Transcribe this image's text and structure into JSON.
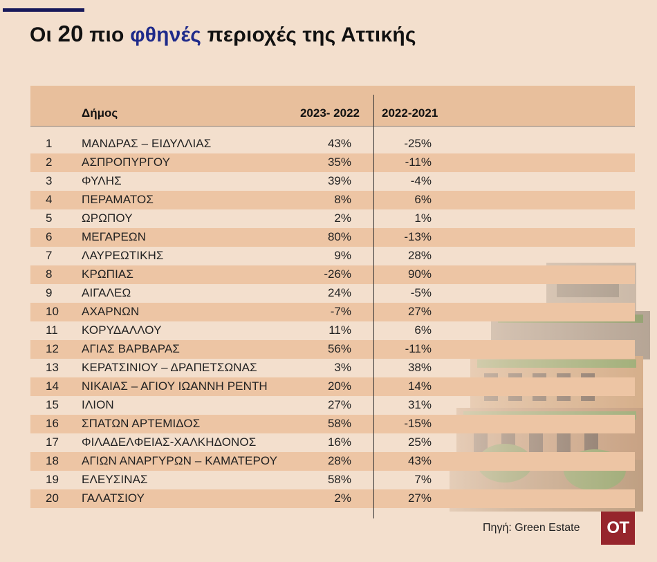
{
  "title": {
    "prefix": "Οι",
    "number": "20",
    "middle": "πιο",
    "accent": "φθηνές",
    "suffix": "περιοχές της Αττικής"
  },
  "colors": {
    "accent": "#1e2a8a",
    "topbar": "#17195a",
    "background": "#f3dfcd",
    "row_shade": "#edc5a4",
    "header": "#e8bf9c",
    "logo_bg": "#96252c"
  },
  "source": "Πηγή: Green Estate",
  "logo": "OT",
  "chart_data": {
    "type": "table",
    "columns": [
      "",
      "Δήμος",
      "2023- 2022",
      "2022-2021"
    ],
    "rows": [
      {
        "rank": "1",
        "name": "ΜΑΝΔΡΑΣ – ΕΙΔΥΛΛΙΑΣ",
        "v1": "43%",
        "v2": "-25%"
      },
      {
        "rank": "2",
        "name": "ΑΣΠΡΟΠΥΡΓΟΥ",
        "v1": "35%",
        "v2": "-11%"
      },
      {
        "rank": "3",
        "name": "ΦΥΛΗΣ",
        "v1": "39%",
        "v2": "-4%"
      },
      {
        "rank": "4",
        "name": "ΠΕΡΑΜΑΤΟΣ",
        "v1": "8%",
        "v2": "6%"
      },
      {
        "rank": "5",
        "name": "ΩΡΩΠΟΥ",
        "v1": "2%",
        "v2": "1%"
      },
      {
        "rank": "6",
        "name": "ΜΕΓΑΡΕΩΝ",
        "v1": "80%",
        "v2": "-13%"
      },
      {
        "rank": "7",
        "name": "ΛΑΥΡΕΩΤΙΚΗΣ",
        "v1": "9%",
        "v2": "28%"
      },
      {
        "rank": "8",
        "name": "ΚΡΩΠΙΑΣ",
        "v1": "-26%",
        "v2": "90%"
      },
      {
        "rank": "9",
        "name": "ΑΙΓΑΛΕΩ",
        "v1": "24%",
        "v2": "-5%"
      },
      {
        "rank": "10",
        "name": "ΑΧΑΡΝΩΝ",
        "v1": "-7%",
        "v2": "27%"
      },
      {
        "rank": "11",
        "name": "ΚΟΡΥΔΑΛΛΟΥ",
        "v1": "11%",
        "v2": "6%"
      },
      {
        "rank": "12",
        "name": "ΑΓΙΑΣ ΒΑΡΒΑΡΑΣ",
        "v1": "56%",
        "v2": "-11%"
      },
      {
        "rank": "13",
        "name": "ΚΕΡΑΤΣΙΝΙΟΥ – ΔΡΑΠΕΤΣΩΝΑΣ",
        "v1": "3%",
        "v2": "38%"
      },
      {
        "rank": "14",
        "name": "ΝΙΚΑΙΑΣ – ΑΓΙΟΥ ΙΩΑΝΝΗ ΡΕΝΤΗ",
        "v1": "20%",
        "v2": "14%"
      },
      {
        "rank": "15",
        "name": "ΙΛΙΟΝ",
        "v1": "27%",
        "v2": "31%"
      },
      {
        "rank": "16",
        "name": "ΣΠΑΤΩΝ ΑΡΤΕΜΙΔΟΣ",
        "v1": "58%",
        "v2": "-15%"
      },
      {
        "rank": "17",
        "name": "ΦΙΛΑΔΕΛΦΕΙΑΣ-ΧΑΛΚΗΔΟΝΟΣ",
        "v1": "16%",
        "v2": "25%"
      },
      {
        "rank": "18",
        "name": "ΑΓΙΩΝ ΑΝΑΡΓΥΡΩΝ – ΚΑΜΑΤΕΡΟΥ",
        "v1": "28%",
        "v2": "43%"
      },
      {
        "rank": "19",
        "name": "ΕΛΕΥΣΙΝΑΣ",
        "v1": "58%",
        "v2": "7%"
      },
      {
        "rank": "20",
        "name": "ΓΑΛΑΤΣΙΟΥ",
        "v1": "2%",
        "v2": "27%"
      }
    ]
  }
}
